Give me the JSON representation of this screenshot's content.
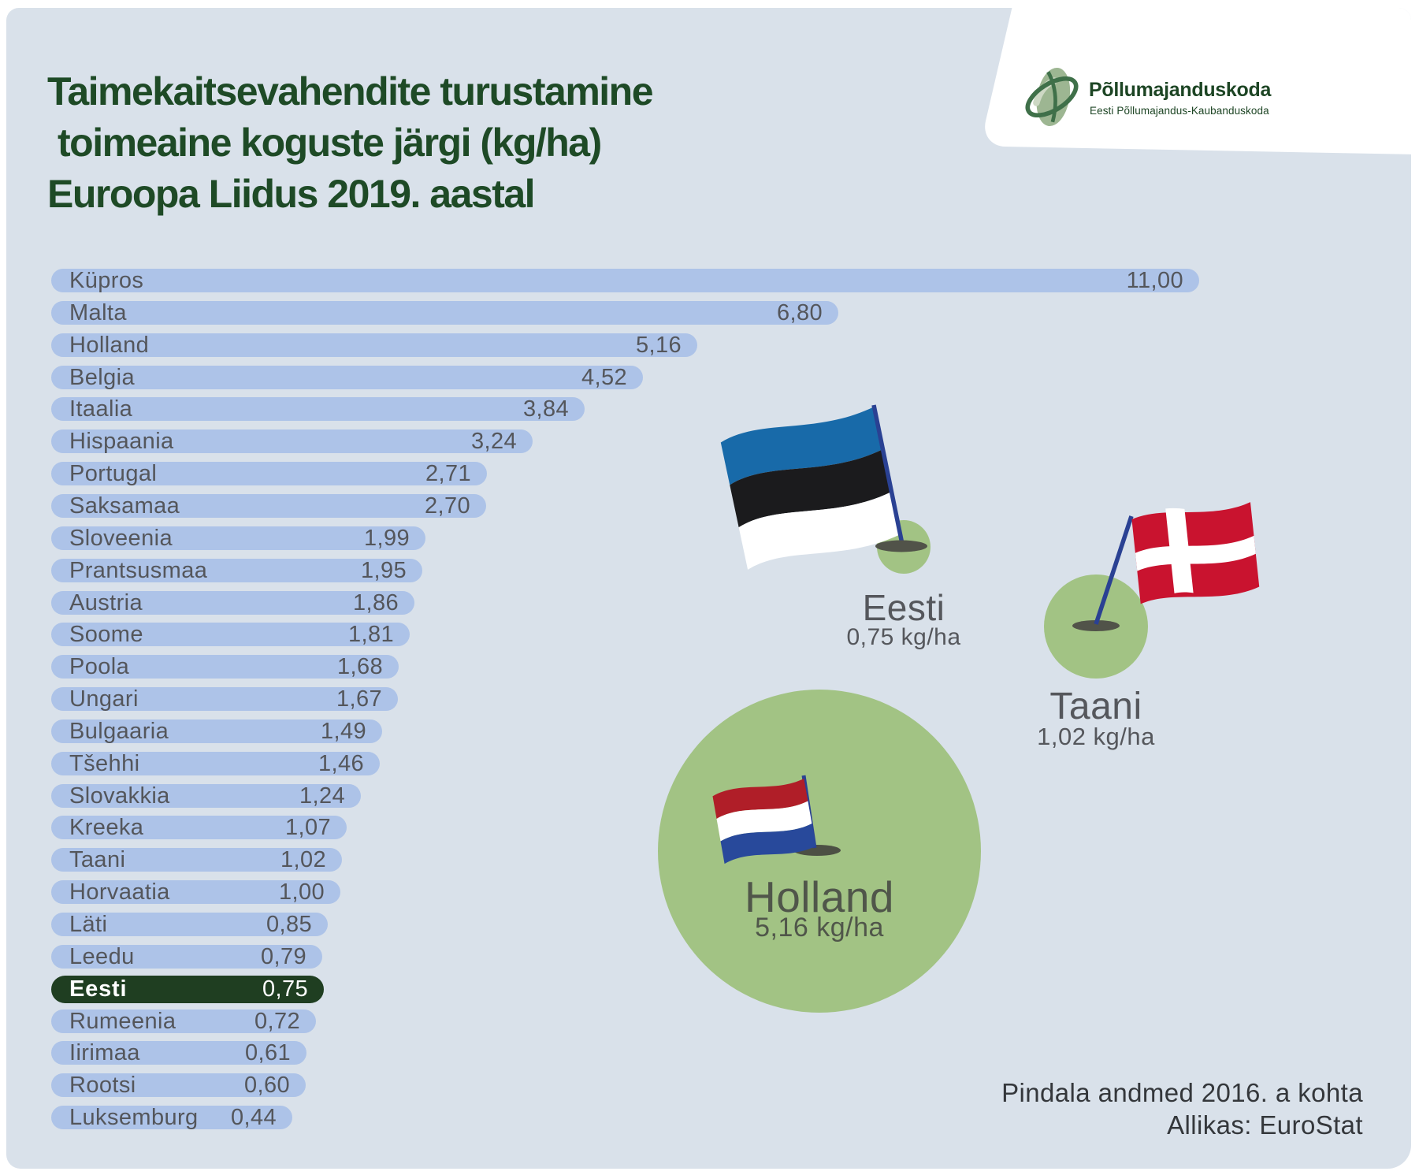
{
  "title": {
    "lines": [
      "Taimekaitsevahendite turustamine",
      "toimeaine koguste järgi (kg/ha)",
      "Euroopa Liidus 2019. aastal"
    ]
  },
  "logo": {
    "name": "Põllumajanduskoda",
    "subtitle": "Eesti Põllumajandus-Kaubanduskoda"
  },
  "chart_data": {
    "type": "bar",
    "orientation": "horizontal",
    "unit": "kg/ha",
    "title": "Taimekaitsevahendite turustamine toimeaine koguste järgi (kg/ha) Euroopa Liidus 2019. aastal",
    "categories": [
      "Küpros",
      "Malta",
      "Holland",
      "Belgia",
      "Itaalia",
      "Hispaania",
      "Portugal",
      "Saksamaa",
      "Sloveenia",
      "Prantsusmaa",
      "Austria",
      "Soome",
      "Poola",
      "Ungari",
      "Bulgaaria",
      "Tšehhi",
      "Slovakkia",
      "Kreeka",
      "Taani",
      "Horvaatia",
      "Läti",
      "Leedu",
      "Eesti",
      "Rumeenia",
      "Iirimaa",
      "Rootsi",
      "Luksemburg"
    ],
    "values": [
      11.0,
      6.8,
      5.16,
      4.52,
      3.84,
      3.24,
      2.71,
      2.7,
      1.99,
      1.95,
      1.86,
      1.81,
      1.68,
      1.67,
      1.49,
      1.46,
      1.24,
      1.07,
      1.02,
      1.0,
      0.85,
      0.79,
      0.75,
      0.72,
      0.61,
      0.6,
      0.44
    ],
    "value_labels": [
      "11,00",
      "6,80",
      "5,16",
      "4,52",
      "3,84",
      "3,24",
      "2,71",
      "2,70",
      "1,99",
      "1,95",
      "1,86",
      "1,81",
      "1,68",
      "1,67",
      "1,49",
      "1,46",
      "1,24",
      "1,07",
      "1,02",
      "1,00",
      "0,85",
      "0,79",
      "0,75",
      "0,72",
      "0,61",
      "0,60",
      "0,44"
    ],
    "highlight_country": "Eesti",
    "legend_position": "none",
    "grid": false
  },
  "bubbles": [
    {
      "id": "eesti",
      "country": "Eesti",
      "value_label": "0,75 kg/ha",
      "flag": "estonia-flag"
    },
    {
      "id": "taani",
      "country": "Taani",
      "value_label": "1,02 kg/ha",
      "flag": "denmark-flag"
    },
    {
      "id": "holland",
      "country": "Holland",
      "value_label": "5,16 kg/ha",
      "flag": "netherlands-flag"
    }
  ],
  "footnote": {
    "line1": "Pindala andmed 2016. a kohta",
    "line2": "Allikas: EuroStat"
  },
  "colors": {
    "card_background": "#d9e1ea",
    "bar_color": "#adc3e8",
    "highlight_color": "#1f3e21",
    "bubble_green": "#a2c384",
    "title_green": "#1e4a26",
    "label_gray": "#54565b",
    "estonia_blue": "#186aa9",
    "denmark_red": "#c9132f",
    "netherlands_red": "#b01e28",
    "netherlands_blue": "#28499b"
  }
}
